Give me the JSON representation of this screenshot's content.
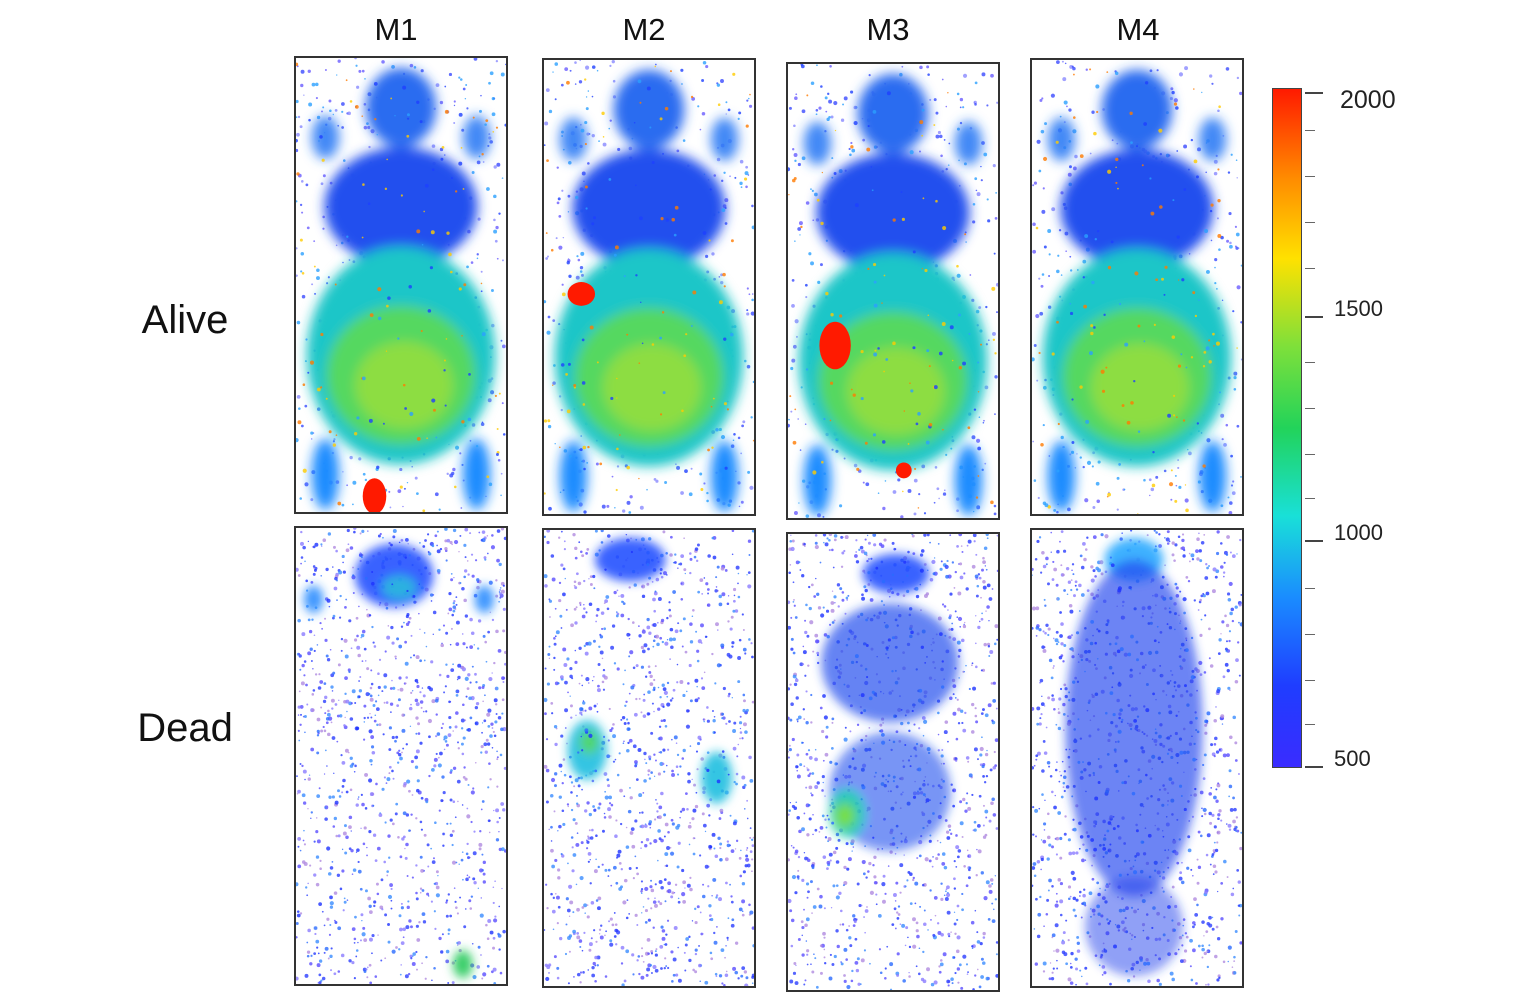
{
  "columns": [
    "M1",
    "M2",
    "M3",
    "M4"
  ],
  "rows": [
    "Alive",
    "Dead"
  ],
  "colorbar": {
    "labels": [
      "2000",
      "1500",
      "1000",
      "500"
    ],
    "colors": [
      "#ff1a00",
      "#ff8a00",
      "#ffe100",
      "#7ee03a",
      "#22d35a",
      "#19e0d8",
      "#1a8cff",
      "#1f3dff",
      "#3a2cff"
    ]
  }
}
